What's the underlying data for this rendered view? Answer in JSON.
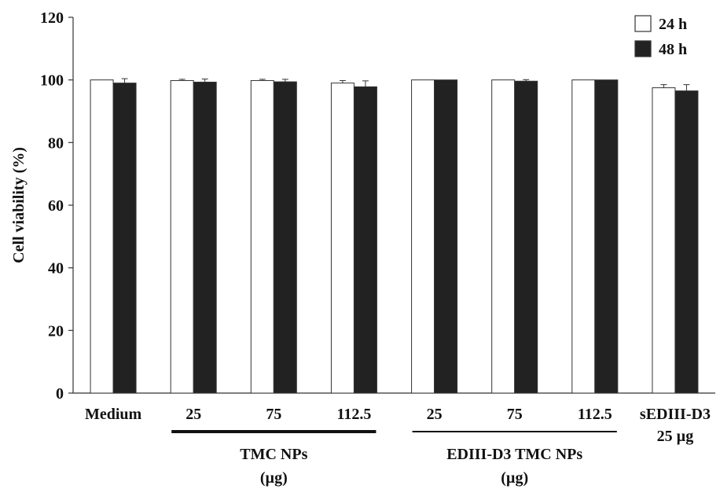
{
  "chart_data": {
    "type": "bar",
    "title": "",
    "xlabel": "",
    "ylabel": "Cell viability (%)",
    "ylim": [
      0,
      120
    ],
    "yticks": [
      0,
      20,
      40,
      60,
      80,
      100,
      120
    ],
    "grid": false,
    "legend_position": "top-right",
    "categories": [
      "Medium",
      "25",
      "75",
      "112.5",
      "25",
      "75",
      "112.5",
      "sEDIII-D3 25 µg"
    ],
    "category_label_lines": [
      [
        "Medium"
      ],
      [
        "25"
      ],
      [
        "75"
      ],
      [
        "112.5"
      ],
      [
        "25"
      ],
      [
        "75"
      ],
      [
        "112.5"
      ],
      [
        "sEDIII-D3",
        "25 µg"
      ]
    ],
    "series": [
      {
        "name": "24 h",
        "color": "#ffffff",
        "values": [
          100,
          99.8,
          99.8,
          99.0,
          100,
          100,
          100,
          97.5
        ],
        "errors": [
          0,
          0.4,
          0.4,
          0.8,
          0,
          0,
          0,
          1.0
        ]
      },
      {
        "name": "48 h",
        "color": "#222222",
        "values": [
          99.0,
          99.3,
          99.4,
          97.8,
          100,
          99.6,
          100,
          96.5
        ],
        "errors": [
          1.4,
          1.0,
          0.8,
          1.9,
          0,
          0.5,
          0,
          2.0
        ]
      }
    ],
    "groups": [
      {
        "label_lines": [
          "TMC NPs",
          "(µg)"
        ],
        "span": [
          1,
          3
        ],
        "line_style": "thick"
      },
      {
        "label_lines": [
          "EDIII-D3 TMC NPs",
          "(µg)"
        ],
        "span": [
          4,
          6
        ],
        "line_style": "thin"
      }
    ]
  }
}
